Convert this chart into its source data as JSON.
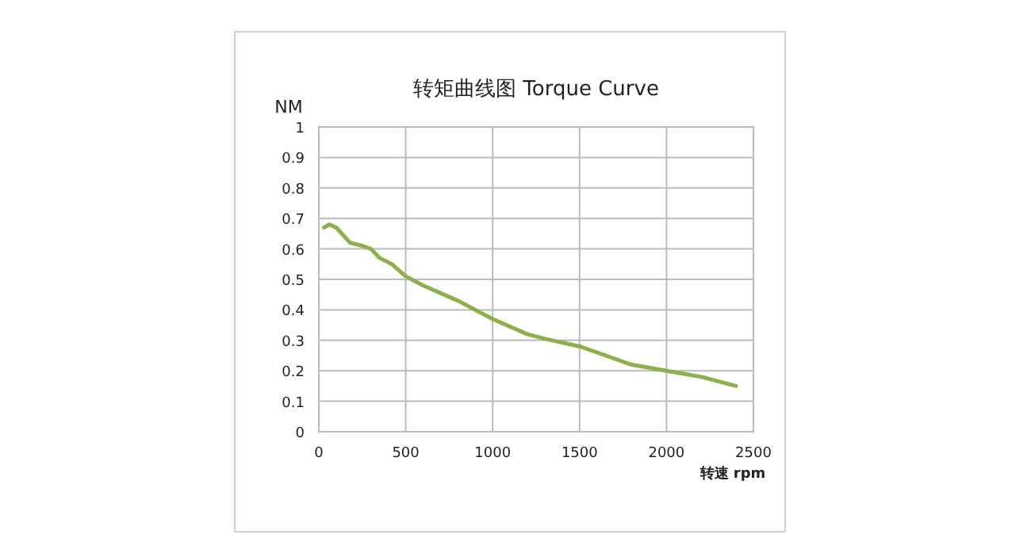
{
  "chart_data": {
    "type": "line",
    "title": "转矩曲线图 Torque Curve",
    "xlabel": "转速 rpm",
    "ylabel": "NM",
    "x": [
      30,
      60,
      100,
      180,
      250,
      300,
      350,
      420,
      500,
      600,
      800,
      1000,
      1200,
      1300,
      1500,
      1650,
      1800,
      2000,
      2100,
      2200,
      2400
    ],
    "values": [
      0.67,
      0.68,
      0.67,
      0.62,
      0.61,
      0.6,
      0.57,
      0.55,
      0.51,
      0.48,
      0.43,
      0.37,
      0.32,
      0.305,
      0.28,
      0.25,
      0.22,
      0.2,
      0.19,
      0.18,
      0.15
    ],
    "color": "#8db04a",
    "xlim": [
      0,
      2500
    ],
    "ylim": [
      0,
      1
    ],
    "xticks": [
      0,
      500,
      1000,
      1500,
      2000,
      2500
    ],
    "yticks": [
      0,
      0.1,
      0.2,
      0.3,
      0.4,
      0.5,
      0.6,
      0.7,
      0.8,
      0.9,
      1
    ],
    "grid": true
  }
}
